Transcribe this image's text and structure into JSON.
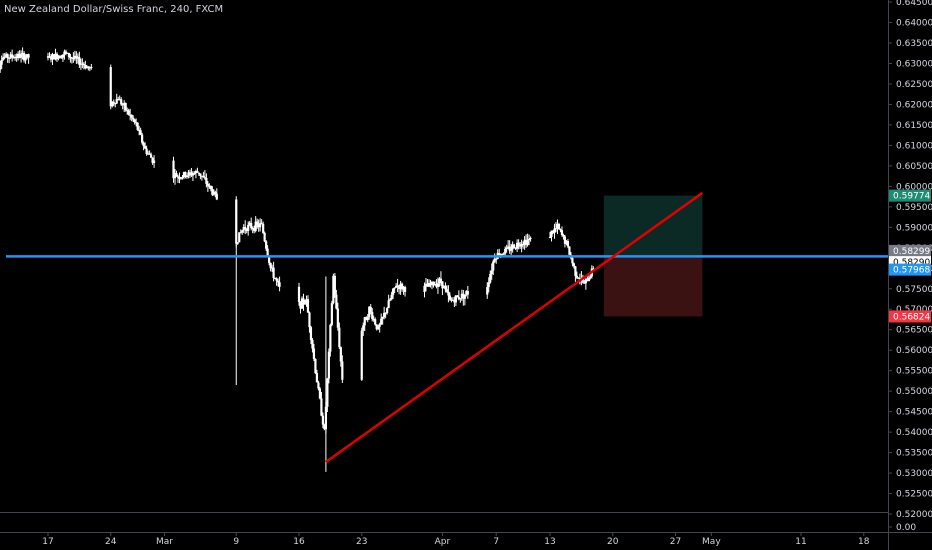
{
  "header": {
    "symbol_title": "New Zealand Dollar/Swiss Franc, 240, FXCM"
  },
  "chart_data": {
    "type": "candlestick",
    "title": "New Zealand Dollar/Swiss Franc, 240, FXCM",
    "ylim": [
      0.5205,
      0.6455
    ],
    "y_ticks": [
      "0.64500",
      "0.64000",
      "0.63500",
      "0.63000",
      "0.62500",
      "0.62000",
      "0.61500",
      "0.61000",
      "0.60500",
      "0.60000",
      "0.59500",
      "0.59000",
      "0.58500",
      "0.58000",
      "0.57500",
      "0.57000",
      "0.56500",
      "0.56000",
      "0.55500",
      "0.55000",
      "0.54500",
      "0.54000",
      "0.53500",
      "0.53000",
      "0.52500",
      "0.52000"
    ],
    "sub_pane_tick": "0.00",
    "x_ticks": [
      {
        "label": "17",
        "date": "2020-02-17"
      },
      {
        "label": "24",
        "date": "2020-02-24"
      },
      {
        "label": "Mar",
        "date": "2020-03-01"
      },
      {
        "label": "9",
        "date": "2020-03-09"
      },
      {
        "label": "16",
        "date": "2020-03-16"
      },
      {
        "label": "23",
        "date": "2020-03-23"
      },
      {
        "label": "Apr",
        "date": "2020-04-01"
      },
      {
        "label": "7",
        "date": "2020-04-07"
      },
      {
        "label": "13",
        "date": "2020-04-13"
      },
      {
        "label": "20",
        "date": "2020-04-20"
      },
      {
        "label": "27",
        "date": "2020-04-27"
      },
      {
        "label": "May",
        "date": "2020-05-01"
      },
      {
        "label": "11",
        "date": "2020-05-11"
      },
      {
        "label": "18",
        "date": "2020-05-18"
      }
    ],
    "price_path": [
      [
        "2020-02-11",
        0.625
      ],
      [
        "2020-02-12",
        0.6315
      ],
      [
        "2020-02-14",
        0.6318
      ],
      [
        "2020-02-17",
        0.631
      ],
      [
        "2020-02-19",
        0.6325
      ],
      [
        "2020-02-21",
        0.63
      ],
      [
        "2020-02-22",
        0.6285
      ],
      [
        "2020-02-24",
        0.62
      ],
      [
        "2020-02-25",
        0.6215
      ],
      [
        "2020-02-27",
        0.615
      ],
      [
        "2020-02-28",
        0.609
      ],
      [
        "2020-03-01",
        0.603
      ],
      [
        "2020-03-03",
        0.6025
      ],
      [
        "2020-03-05",
        0.6035
      ],
      [
        "2020-03-07",
        0.597
      ],
      [
        "2020-03-09",
        0.586
      ],
      [
        "2020-03-10",
        0.59
      ],
      [
        "2020-03-12",
        0.5905
      ],
      [
        "2020-03-13",
        0.58
      ],
      [
        "2020-03-15",
        0.57
      ],
      [
        "2020-03-17",
        0.572
      ],
      [
        "2020-03-18",
        0.555
      ],
      [
        "2020-03-19",
        0.54
      ],
      [
        "2020-03-20",
        0.578
      ],
      [
        "2020-03-21",
        0.553
      ],
      [
        "2020-03-24",
        0.57
      ],
      [
        "2020-03-25",
        0.565
      ],
      [
        "2020-03-27",
        0.576
      ],
      [
        "2020-03-29",
        0.574
      ],
      [
        "2020-04-01",
        0.577
      ],
      [
        "2020-04-02",
        0.572
      ],
      [
        "2020-04-04",
        0.574
      ],
      [
        "2020-04-06",
        0.5745
      ],
      [
        "2020-04-07",
        0.583
      ],
      [
        "2020-04-08",
        0.584
      ],
      [
        "2020-04-10",
        0.5865
      ],
      [
        "2020-04-13",
        0.588
      ],
      [
        "2020-04-14",
        0.59
      ],
      [
        "2020-04-15",
        0.586
      ],
      [
        "2020-04-16",
        0.579
      ],
      [
        "2020-04-17",
        0.576
      ],
      [
        "2020-04-18",
        0.58
      ],
      [
        "2020-04-19",
        0.583
      ]
    ],
    "wicks": [
      {
        "date": "2020-03-09",
        "high": 0.5905,
        "low": 0.5515
      },
      {
        "date": "2020-03-19",
        "high": 0.578,
        "low": 0.5303
      }
    ],
    "last_price": 0.58299,
    "drawings": {
      "horizontal_line": {
        "price": 0.5829,
        "color": "#2196f3"
      },
      "trend_line": {
        "x1": "2020-03-19",
        "y1": 0.5327,
        "x2": "2020-04-30",
        "y2": 0.5984,
        "color": "#e00000"
      },
      "position": {
        "x_start": "2020-04-19",
        "x_end": "2020-04-30",
        "entry": 0.58299,
        "target": 0.59774,
        "stop": 0.56824,
        "profit_color": "#0b2a26",
        "loss_color": "#3a1212"
      }
    },
    "price_labels": [
      {
        "text": "0.59774",
        "price": 0.59774,
        "bg": "#1e8c73",
        "fg": "#ffffff"
      },
      {
        "text": "0.58299",
        "price": 0.58425,
        "bg": "#787b86",
        "fg": "#ffffff"
      },
      {
        "text": "0.58290",
        "price": 0.5815,
        "bg": "#ffffff",
        "fg": "#000000"
      },
      {
        "text": "0.57968",
        "price": 0.57968,
        "bg": "#2196f3",
        "fg": "#ffffff"
      },
      {
        "text": "0.56824",
        "price": 0.56824,
        "bg": "#f23645",
        "fg": "#ffffff"
      }
    ],
    "colors": {
      "background": "#000000",
      "candle": "#ffffff",
      "axis_text": "#d1d4dc",
      "axis_line": "#434651"
    }
  }
}
